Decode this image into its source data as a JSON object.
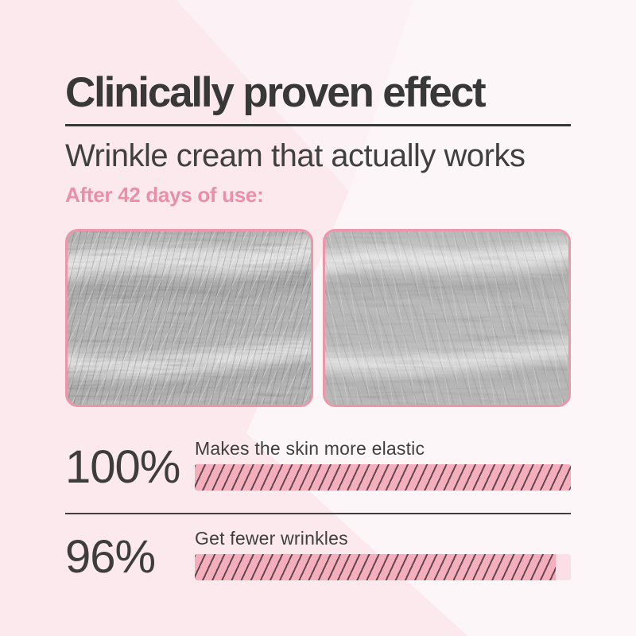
{
  "colors": {
    "background_pink": "#fbe9ee",
    "background_light": "#fdf6f8",
    "background_mid": "#fcf1f5",
    "title_text": "#383838",
    "accent_pink": "#e98fa7",
    "image_border": "#ec96ab",
    "bar_fill_pink": "#f4aebc",
    "bar_hatch_line": "#4d3a42",
    "bar_track_pink": "#fbdee6"
  },
  "header": {
    "title": "Clinically proven effect",
    "subtitle": "Wrinkle cream that actually works",
    "kicker": "After 42 days of use:"
  },
  "comparison": {
    "images": [
      {
        "role": "before",
        "description": "magnified skin texture with more wrinkles"
      },
      {
        "role": "after",
        "description": "magnified skin texture, smoother"
      }
    ]
  },
  "stats": [
    {
      "value": "100%",
      "label": "Makes the skin more elastic",
      "percent": 100
    },
    {
      "value": "96%",
      "label": "Get fewer wrinkles",
      "percent": 96
    }
  ],
  "chart_data": {
    "type": "bar",
    "orientation": "horizontal",
    "title": "Clinically proven effect",
    "subtitle": "Wrinkle cream that actually works",
    "annotation": "After 42 days of use:",
    "categories": [
      "Makes the skin more elastic",
      "Get fewer wrinkles"
    ],
    "values": [
      100,
      96
    ],
    "unit": "%",
    "xlim": [
      0,
      100
    ],
    "grid": false,
    "legend": false,
    "bar_style": "pink diagonal hatch"
  }
}
